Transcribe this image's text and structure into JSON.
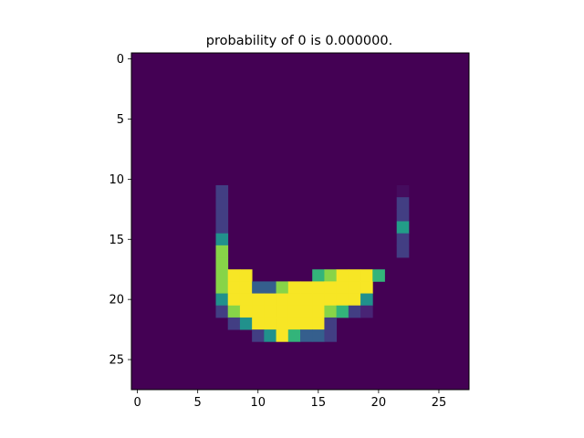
{
  "chart_data": {
    "type": "heatmap",
    "title": "probability of  0 is  0.000000.",
    "colormap": "viridis",
    "value_range": [
      0,
      1
    ],
    "rows": 28,
    "cols": 28,
    "x_ticks": [
      "0",
      "5",
      "10",
      "15",
      "20",
      "25"
    ],
    "y_ticks": [
      "0",
      "5",
      "10",
      "15",
      "20",
      "25"
    ],
    "grid": false,
    "nonzero_pixels": [
      {
        "row": 11,
        "col": 7,
        "v": 0.18
      },
      {
        "row": 11,
        "col": 22,
        "v": 0.03
      },
      {
        "row": 12,
        "col": 7,
        "v": 0.18
      },
      {
        "row": 12,
        "col": 22,
        "v": 0.18
      },
      {
        "row": 13,
        "col": 7,
        "v": 0.18
      },
      {
        "row": 13,
        "col": 22,
        "v": 0.18
      },
      {
        "row": 14,
        "col": 7,
        "v": 0.18
      },
      {
        "row": 14,
        "col": 22,
        "v": 0.55
      },
      {
        "row": 15,
        "col": 7,
        "v": 0.5
      },
      {
        "row": 15,
        "col": 22,
        "v": 0.18
      },
      {
        "row": 16,
        "col": 7,
        "v": 0.82
      },
      {
        "row": 16,
        "col": 22,
        "v": 0.18
      },
      {
        "row": 17,
        "col": 7,
        "v": 0.82
      },
      {
        "row": 18,
        "col": 7,
        "v": 0.82
      },
      {
        "row": 18,
        "col": 8,
        "v": 0.99
      },
      {
        "row": 18,
        "col": 9,
        "v": 0.99
      },
      {
        "row": 18,
        "col": 15,
        "v": 0.65
      },
      {
        "row": 18,
        "col": 16,
        "v": 0.82
      },
      {
        "row": 18,
        "col": 17,
        "v": 0.99
      },
      {
        "row": 18,
        "col": 18,
        "v": 0.99
      },
      {
        "row": 18,
        "col": 19,
        "v": 0.99
      },
      {
        "row": 18,
        "col": 20,
        "v": 0.65
      },
      {
        "row": 19,
        "col": 7,
        "v": 0.82
      },
      {
        "row": 19,
        "col": 8,
        "v": 0.99
      },
      {
        "row": 19,
        "col": 9,
        "v": 0.99
      },
      {
        "row": 19,
        "col": 10,
        "v": 0.3
      },
      {
        "row": 19,
        "col": 11,
        "v": 0.3
      },
      {
        "row": 19,
        "col": 12,
        "v": 0.82
      },
      {
        "row": 19,
        "col": 13,
        "v": 0.99
      },
      {
        "row": 19,
        "col": 14,
        "v": 0.99
      },
      {
        "row": 19,
        "col": 15,
        "v": 0.99
      },
      {
        "row": 19,
        "col": 16,
        "v": 0.99
      },
      {
        "row": 19,
        "col": 17,
        "v": 0.99
      },
      {
        "row": 19,
        "col": 18,
        "v": 0.99
      },
      {
        "row": 19,
        "col": 19,
        "v": 0.99
      },
      {
        "row": 20,
        "col": 7,
        "v": 0.5
      },
      {
        "row": 20,
        "col": 8,
        "v": 0.99
      },
      {
        "row": 20,
        "col": 9,
        "v": 0.99
      },
      {
        "row": 20,
        "col": 10,
        "v": 0.99
      },
      {
        "row": 20,
        "col": 11,
        "v": 0.99
      },
      {
        "row": 20,
        "col": 12,
        "v": 0.99
      },
      {
        "row": 20,
        "col": 13,
        "v": 0.99
      },
      {
        "row": 20,
        "col": 14,
        "v": 0.99
      },
      {
        "row": 20,
        "col": 15,
        "v": 0.99
      },
      {
        "row": 20,
        "col": 16,
        "v": 0.99
      },
      {
        "row": 20,
        "col": 17,
        "v": 0.99
      },
      {
        "row": 20,
        "col": 18,
        "v": 0.99
      },
      {
        "row": 20,
        "col": 19,
        "v": 0.5
      },
      {
        "row": 21,
        "col": 7,
        "v": 0.18
      },
      {
        "row": 21,
        "col": 8,
        "v": 0.82
      },
      {
        "row": 21,
        "col": 9,
        "v": 0.99
      },
      {
        "row": 21,
        "col": 10,
        "v": 0.99
      },
      {
        "row": 21,
        "col": 11,
        "v": 0.99
      },
      {
        "row": 21,
        "col": 12,
        "v": 0.99
      },
      {
        "row": 21,
        "col": 13,
        "v": 0.99
      },
      {
        "row": 21,
        "col": 14,
        "v": 0.99
      },
      {
        "row": 21,
        "col": 15,
        "v": 0.99
      },
      {
        "row": 21,
        "col": 16,
        "v": 0.82
      },
      {
        "row": 21,
        "col": 17,
        "v": 0.65
      },
      {
        "row": 21,
        "col": 18,
        "v": 0.18
      },
      {
        "row": 21,
        "col": 19,
        "v": 0.1
      },
      {
        "row": 22,
        "col": 8,
        "v": 0.18
      },
      {
        "row": 22,
        "col": 9,
        "v": 0.5
      },
      {
        "row": 22,
        "col": 10,
        "v": 0.99
      },
      {
        "row": 22,
        "col": 11,
        "v": 0.99
      },
      {
        "row": 22,
        "col": 12,
        "v": 0.99
      },
      {
        "row": 22,
        "col": 13,
        "v": 0.99
      },
      {
        "row": 22,
        "col": 14,
        "v": 0.99
      },
      {
        "row": 22,
        "col": 15,
        "v": 0.99
      },
      {
        "row": 22,
        "col": 16,
        "v": 0.18
      },
      {
        "row": 23,
        "col": 10,
        "v": 0.18
      },
      {
        "row": 23,
        "col": 11,
        "v": 0.5
      },
      {
        "row": 23,
        "col": 12,
        "v": 0.99
      },
      {
        "row": 23,
        "col": 13,
        "v": 0.65
      },
      {
        "row": 23,
        "col": 14,
        "v": 0.3
      },
      {
        "row": 23,
        "col": 15,
        "v": 0.3
      },
      {
        "row": 23,
        "col": 16,
        "v": 0.18
      }
    ]
  }
}
